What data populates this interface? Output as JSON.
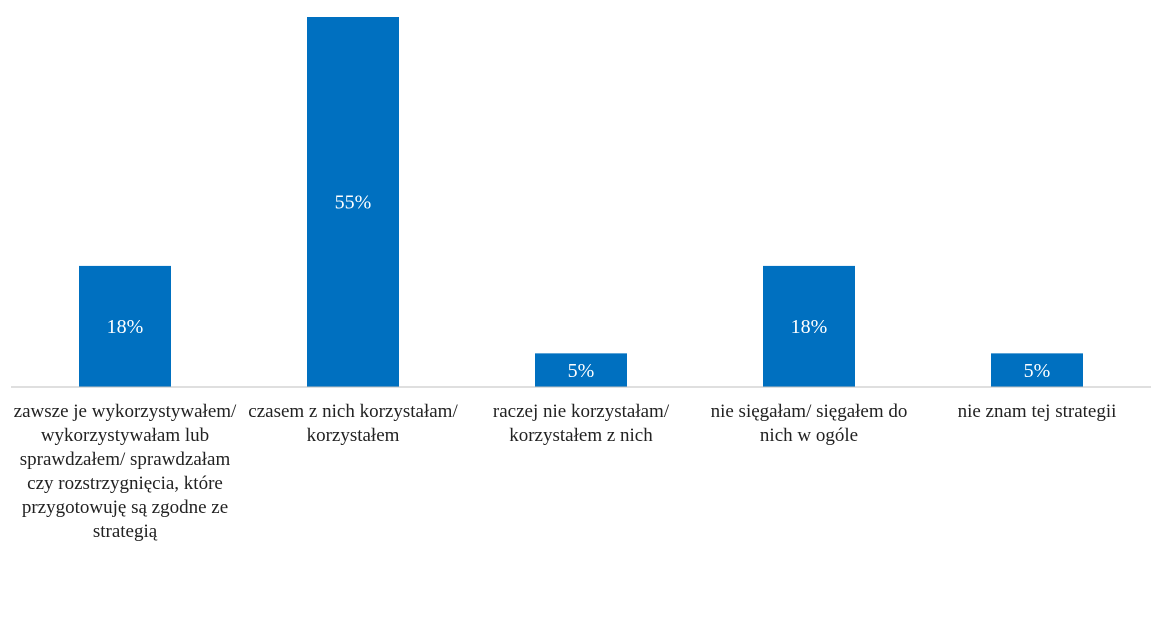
{
  "chart_data": {
    "type": "bar",
    "categories": [
      "zawsze je wykorzystywałem/ wykorzystywałam lub sprawdzałem/ sprawdzałam czy rozstrzygnięcia, które przygotowuję są zgodne ze strategią",
      "czasem z nich korzystałam/ korzystałem",
      "raczej nie korzystałam/ korzystałem z nich",
      "nie sięgałam/ sięgałem do nich w ogóle",
      "nie znam tej strategii"
    ],
    "values": [
      18,
      55,
      5,
      18,
      5
    ],
    "value_labels": [
      "18%",
      "55%",
      "5%",
      "18%",
      "5%"
    ],
    "color": "#0070c0"
  }
}
